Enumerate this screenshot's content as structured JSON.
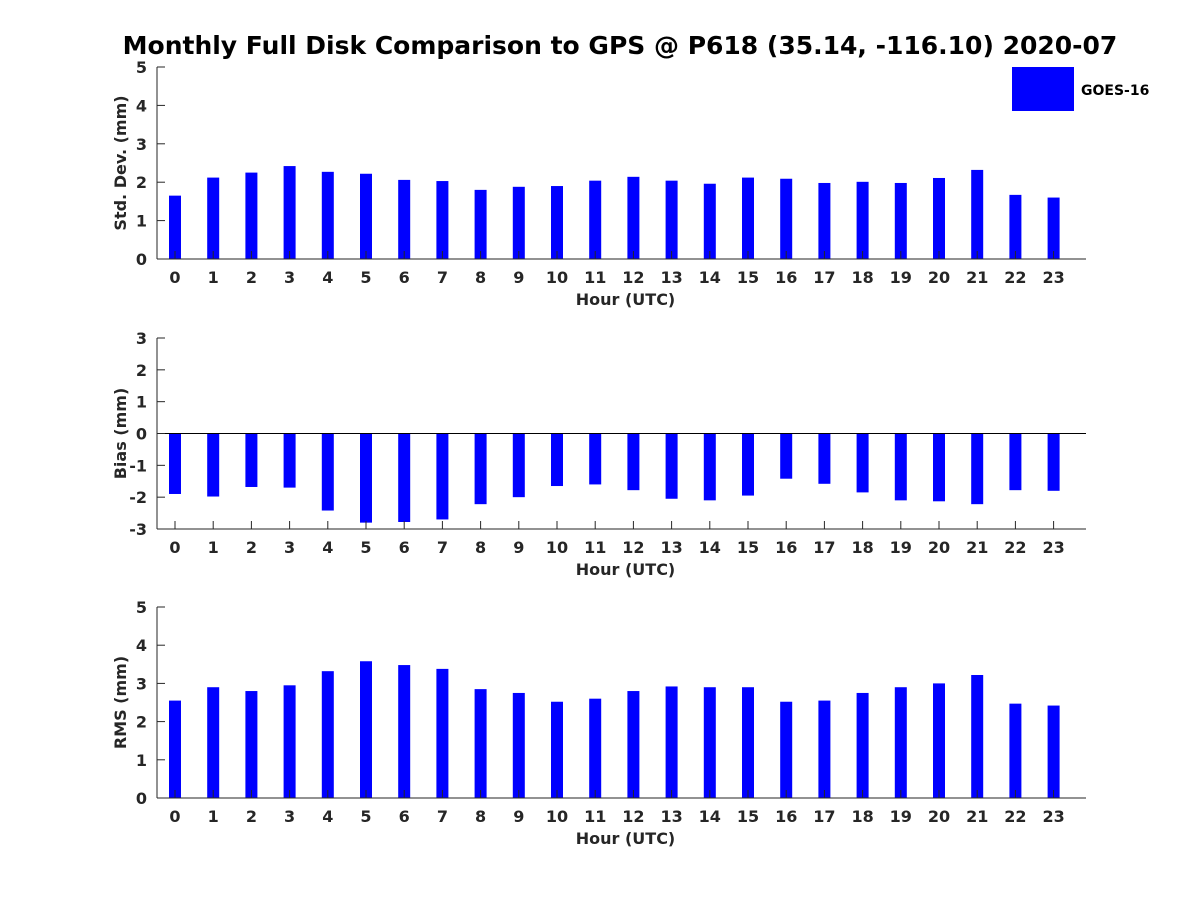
{
  "chart_data": {
    "type": "bar",
    "title": "Monthly Full Disk Comparison to GPS @ P618 (35.14, -116.10) 2020-07",
    "legend": {
      "label": "GOES-16",
      "placement": "top-right"
    },
    "bar_color": "#0000ff",
    "categories": [
      "0",
      "1",
      "2",
      "3",
      "4",
      "5",
      "6",
      "7",
      "8",
      "9",
      "10",
      "11",
      "12",
      "13",
      "14",
      "15",
      "16",
      "17",
      "18",
      "19",
      "20",
      "21",
      "22",
      "23"
    ],
    "panels": [
      {
        "id": "std",
        "xlabel": "Hour (UTC)",
        "ylabel": "Std. Dev. (mm)",
        "ylim": [
          0,
          5
        ],
        "yticks": [
          "0",
          "1",
          "2",
          "3",
          "4",
          "5"
        ],
        "values": [
          1.65,
          2.12,
          2.25,
          2.42,
          2.27,
          2.22,
          2.06,
          2.03,
          1.8,
          1.88,
          1.9,
          2.04,
          2.14,
          2.04,
          1.96,
          2.12,
          2.09,
          1.98,
          2.01,
          1.98,
          2.11,
          2.32,
          1.67,
          1.6
        ]
      },
      {
        "id": "bias",
        "xlabel": "Hour (UTC)",
        "ylabel": "Bias (mm)",
        "ylim": [
          -3,
          3
        ],
        "yticks": [
          "-3",
          "-2",
          "-1",
          "0",
          "1",
          "2",
          "3"
        ],
        "values": [
          -1.9,
          -1.98,
          -1.68,
          -1.7,
          -2.42,
          -2.8,
          -2.78,
          -2.7,
          -2.22,
          -2.0,
          -1.65,
          -1.6,
          -1.78,
          -2.05,
          -2.1,
          -1.95,
          -1.42,
          -1.58,
          -1.85,
          -2.1,
          -2.13,
          -2.22,
          -1.78,
          -1.8
        ]
      },
      {
        "id": "rms",
        "xlabel": "Hour (UTC)",
        "ylabel": "RMS (mm)",
        "ylim": [
          0,
          5
        ],
        "yticks": [
          "0",
          "1",
          "2",
          "3",
          "4",
          "5"
        ],
        "values": [
          2.55,
          2.9,
          2.8,
          2.95,
          3.32,
          3.58,
          3.48,
          3.38,
          2.85,
          2.75,
          2.52,
          2.6,
          2.8,
          2.92,
          2.9,
          2.9,
          2.52,
          2.55,
          2.75,
          2.9,
          3.0,
          3.22,
          2.47,
          2.42
        ]
      }
    ]
  }
}
